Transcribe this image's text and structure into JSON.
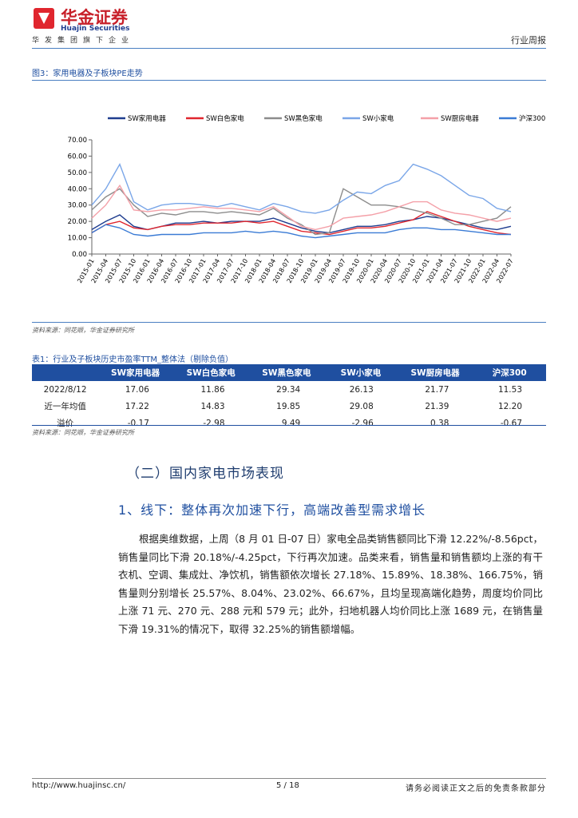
{
  "header": {
    "logo_cn": "华金证券",
    "logo_en": "Huajin Securities",
    "tagline": "华发集团旗下企业",
    "report_type": "行业周报"
  },
  "figure": {
    "caption": "图3：家用电器及子板块PE走势",
    "source": "资料来源：同花顺，华金证券研究所"
  },
  "chart_data": {
    "type": "line",
    "x": [
      "2015-01",
      "2015-04",
      "2015-07",
      "2015-10",
      "2016-01",
      "2016-04",
      "2016-07",
      "2016-10",
      "2017-01",
      "2017-04",
      "2017-07",
      "2017-10",
      "2018-01",
      "2018-04",
      "2018-07",
      "2018-10",
      "2019-01",
      "2019-04",
      "2019-07",
      "2019-10",
      "2020-01",
      "2020-04",
      "2020-07",
      "2020-10",
      "2021-01",
      "2021-04",
      "2021-07",
      "2021-10",
      "2022-01",
      "2022-04",
      "2022-07"
    ],
    "ylim": [
      0,
      70
    ],
    "yticks": [
      {
        "value": 0,
        "label": "0.00"
      },
      {
        "value": 10,
        "label": "10.00"
      },
      {
        "value": 20,
        "label": "20.00"
      },
      {
        "value": 30,
        "label": "30.00"
      },
      {
        "value": 40,
        "label": "40.00"
      },
      {
        "value": 50,
        "label": "50.00"
      },
      {
        "value": 60,
        "label": "60.00"
      },
      {
        "value": 70,
        "label": "70.00"
      }
    ],
    "legend": "top",
    "series": [
      {
        "name": "SW家用电器",
        "color": "#1f3d8f",
        "values": [
          15,
          20,
          24,
          17,
          15,
          17,
          19,
          19,
          20,
          19,
          20,
          20,
          20,
          22,
          19,
          16,
          14,
          13,
          15,
          17,
          17,
          18,
          20,
          21,
          23,
          22,
          20,
          18,
          16,
          15,
          17
        ]
      },
      {
        "name": "SW白色家电",
        "color": "#e0262e",
        "values": [
          13,
          18,
          20,
          16,
          15,
          17,
          18,
          18,
          19,
          19,
          19,
          20,
          19,
          20,
          17,
          14,
          13,
          12,
          14,
          16,
          16,
          17,
          19,
          21,
          26,
          23,
          20,
          17,
          15,
          13,
          12
        ]
      },
      {
        "name": "SW黑色家电",
        "color": "#8c8c8c",
        "values": [
          27,
          35,
          40,
          30,
          23,
          25,
          24,
          26,
          26,
          25,
          26,
          25,
          24,
          28,
          22,
          18,
          12,
          13,
          40,
          35,
          30,
          30,
          29,
          27,
          25,
          22,
          18,
          18,
          20,
          22,
          29
        ]
      },
      {
        "name": "SW小家电",
        "color": "#7aa6e8",
        "values": [
          30,
          40,
          55,
          32,
          27,
          30,
          31,
          31,
          30,
          29,
          31,
          29,
          27,
          31,
          29,
          26,
          25,
          27,
          33,
          38,
          37,
          42,
          45,
          55,
          52,
          48,
          42,
          36,
          34,
          28,
          26
        ]
      },
      {
        "name": "SW厨房电器",
        "color": "#f4a0a8",
        "values": [
          22,
          30,
          42,
          27,
          26,
          27,
          27,
          28,
          29,
          28,
          28,
          27,
          26,
          29,
          23,
          17,
          15,
          17,
          22,
          23,
          24,
          26,
          29,
          32,
          32,
          27,
          25,
          24,
          22,
          20,
          22
        ]
      },
      {
        "name": "沪深300",
        "color": "#3a7bd5",
        "values": [
          13,
          18,
          16,
          12,
          11,
          12,
          12,
          12,
          13,
          13,
          13,
          14,
          13,
          14,
          13,
          11,
          10,
          11,
          12,
          13,
          13,
          13,
          15,
          16,
          16,
          15,
          15,
          14,
          13,
          12,
          12
        ]
      }
    ]
  },
  "table": {
    "title": "表1：行业及子板块历史市盈率TTM_整体法（剔除负值）",
    "headers": [
      "SW家用电器",
      "SW白色家电",
      "SW黑色家电",
      "SW小家电",
      "SW厨房电器",
      "沪深300"
    ],
    "rows": [
      [
        "2022/8/12",
        "17.06",
        "11.86",
        "29.34",
        "26.13",
        "21.77",
        "11.53"
      ],
      [
        "近一年均值",
        "17.22",
        "14.83",
        "19.85",
        "29.08",
        "21.39",
        "12.20"
      ],
      [
        "溢价",
        "-0.17",
        "-2.98",
        "9.49",
        "-2.96",
        "0.38",
        "-0.67"
      ]
    ],
    "source": "资料来源：同花顺，华金证券研究所"
  },
  "section": {
    "title": "（二）国内家电市场表现",
    "subtitle": "1、线下：整体再次加速下行，高端改善型需求增长",
    "paragraph": "根据奥维数据，上周（8 月 01 日-07 日）家电全品类销售额同比下滑 12.22%/-8.56pct，销售量同比下滑 20.18%/-4.25pct，下行再次加速。品类来看，销售量和销售额均上涨的有干衣机、空调、集成灶、净饮机，销售额依次增长 27.18%、15.89%、18.38%、166.75%，销售量则分别增长 25.57%、8.04%、23.02%、66.67%，且均呈现高端化趋势，周度均价同比上涨 71 元、270 元、288 元和 579 元；此外，扫地机器人均价同比上涨 1689 元，在销售量下滑 19.31%的情况下，取得 32.25%的销售额增幅。"
  },
  "footer": {
    "url": "http://www.huajinsc.cn/",
    "page": "5 / 18",
    "disclaimer": "请务必阅读正文之后的免责条款部分"
  }
}
